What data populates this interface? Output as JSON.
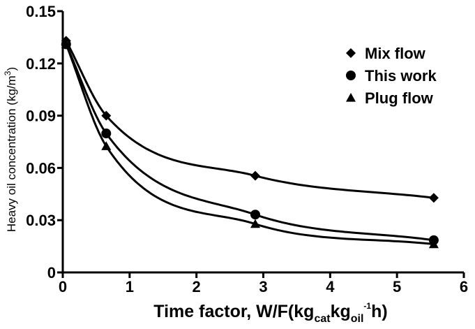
{
  "chart_data": {
    "type": "scatter",
    "xlabel": "Time factor, W/F(kg",
    "xlabel_sub1": "cat",
    "xlabel_mid": "kg",
    "xlabel_sub2": "oil",
    "xlabel_sup": "-1",
    "xlabel_end": "h)",
    "ylabel": "Heavy oil concentration (kg/m",
    "ylabel_sup": "3",
    "ylabel_end": ")",
    "xlim": [
      0,
      6
    ],
    "ylim": [
      0,
      0.15
    ],
    "xticks": [
      "0",
      "1",
      "2",
      "3",
      "4",
      "5",
      "6"
    ],
    "yticks": [
      "0",
      "0.03",
      "0.06",
      "0.09",
      "0.12",
      "0.15"
    ],
    "legend_position": "top-right",
    "series": [
      {
        "name": "Mix flow",
        "marker": "diamond",
        "x": [
          0.05,
          0.65,
          2.88,
          5.55
        ],
        "y": [
          0.133,
          0.09,
          0.0555,
          0.0428
        ]
      },
      {
        "name": "This work",
        "marker": "circle",
        "x": [
          0.05,
          0.65,
          2.88,
          5.55
        ],
        "y": [
          0.131,
          0.0798,
          0.0332,
          0.0185
        ]
      },
      {
        "name": "Plug flow",
        "marker": "triangle",
        "x": [
          0.05,
          0.65,
          2.88,
          5.55
        ],
        "y": [
          0.131,
          0.0725,
          0.0278,
          0.0162
        ]
      }
    ]
  }
}
